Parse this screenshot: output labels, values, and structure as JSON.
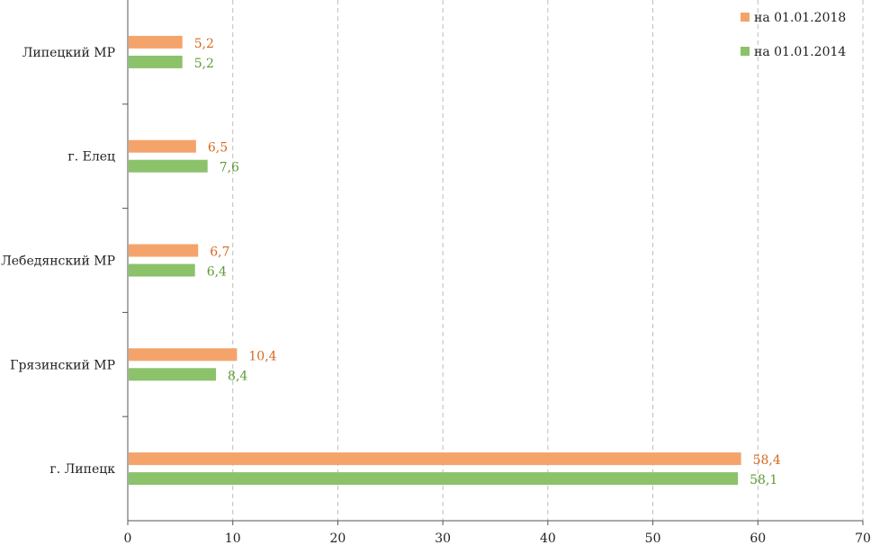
{
  "chart_data": {
    "type": "bar",
    "orientation": "horizontal",
    "categories": [
      "Липецкий МР",
      "г. Елец",
      "Лебедянский МР",
      "Грязинский МР",
      "г. Липецк"
    ],
    "series": [
      {
        "name": "на 01.01.2018",
        "color": "#f4a46a",
        "label_color": "#d46a1e",
        "values": [
          5.2,
          6.5,
          6.7,
          10.4,
          58.4
        ],
        "labels": [
          "5,2",
          "6,5",
          "6,7",
          "10,4",
          "58,4"
        ]
      },
      {
        "name": "на 01.01.2014",
        "color": "#8bc26a",
        "label_color": "#5c9a35",
        "values": [
          5.2,
          7.6,
          6.4,
          8.4,
          58.1
        ],
        "labels": [
          "5,2",
          "7,6",
          "6,4",
          "8,4",
          "58,1"
        ]
      }
    ],
    "xlim": [
      0,
      70
    ],
    "xticks": [
      "0",
      "10",
      "20",
      "30",
      "40",
      "50",
      "60",
      "70"
    ],
    "grid": "vertical-dashed",
    "legend_position": "top-right",
    "title": "",
    "xlabel": "",
    "ylabel": ""
  }
}
